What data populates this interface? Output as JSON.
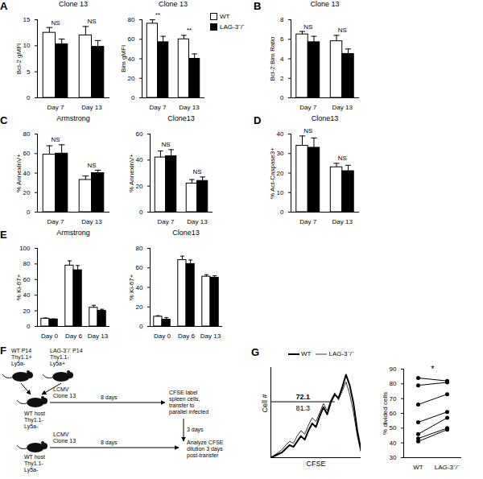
{
  "chart_data": [
    {
      "panel": "A",
      "type": "bar",
      "title": "Clone 13",
      "ylabel": "Bcl-2 gMFI",
      "categories": [
        "Day 7",
        "Day 13"
      ],
      "series": [
        {
          "name": "WT",
          "color": "#ffffff",
          "values": [
            12.5,
            12
          ],
          "errors": [
            1,
            1.7
          ]
        },
        {
          "name": "LAG-3⁻/⁻",
          "color": "#000000",
          "values": [
            10.3,
            9.8
          ],
          "errors": [
            1,
            1.2
          ]
        }
      ],
      "annotations": [
        "NS",
        "NS"
      ],
      "ylim": [
        0,
        15
      ],
      "yticks": [
        0,
        5,
        10,
        15
      ]
    },
    {
      "type": "bar",
      "title": "Clone 13",
      "ylabel": "Bim gMFI",
      "categories": [
        "Day 7",
        "Day 13"
      ],
      "series": [
        {
          "name": "WT",
          "color": "#ffffff",
          "values": [
            76,
            60
          ],
          "errors": [
            4,
            4
          ]
        },
        {
          "name": "LAG-3⁻/⁻",
          "color": "#000000",
          "values": [
            57,
            40
          ],
          "errors": [
            6,
            5
          ]
        }
      ],
      "annotations": [
        "**",
        "**"
      ],
      "ylim": [
        0,
        80
      ],
      "yticks": [
        0,
        20,
        40,
        60,
        80
      ],
      "legend": "top-right"
    },
    {
      "panel": "B",
      "type": "bar",
      "title": "Clone 13",
      "ylabel": "Bcl-2:Bim Ratio",
      "categories": [
        "Day 7",
        "Day 13"
      ],
      "series": [
        {
          "name": "WT",
          "color": "#ffffff",
          "values": [
            6.5,
            5.8
          ],
          "errors": [
            0.3,
            0.6
          ]
        },
        {
          "name": "LAG-3⁻/⁻",
          "color": "#000000",
          "values": [
            5.7,
            4.5
          ],
          "errors": [
            0.6,
            0.5
          ]
        }
      ],
      "annotations": [
        "NS",
        "NS"
      ],
      "ylim": [
        0,
        8
      ],
      "yticks": [
        0,
        2,
        4,
        6,
        8
      ]
    },
    {
      "panel": "C",
      "type": "bar",
      "title": "Armstrong",
      "ylabel": "% AnnexinV+",
      "categories": [
        "Day 7",
        "Day 13"
      ],
      "series": [
        {
          "name": "WT",
          "color": "#ffffff",
          "values": [
            59,
            33
          ],
          "errors": [
            9,
            4
          ]
        },
        {
          "name": "LAG-3⁻/⁻",
          "color": "#000000",
          "values": [
            60,
            40
          ],
          "errors": [
            9,
            3
          ]
        }
      ],
      "annotations": [
        "NS",
        "NS"
      ],
      "ylim": [
        0,
        80
      ],
      "yticks": [
        0,
        20,
        40,
        60,
        80
      ]
    },
    {
      "type": "bar",
      "title": "Clone13",
      "ylabel": "% AnnexinV+",
      "categories": [
        "Day 7",
        "Day 13"
      ],
      "series": [
        {
          "name": "WT",
          "color": "#ffffff",
          "values": [
            42,
            22
          ],
          "errors": [
            5,
            3
          ]
        },
        {
          "name": "LAG-3⁻/⁻",
          "color": "#000000",
          "values": [
            43,
            24
          ],
          "errors": [
            5,
            3
          ]
        }
      ],
      "annotations": [
        "NS",
        "NS"
      ],
      "ylim": [
        0,
        60
      ],
      "yticks": [
        0,
        20,
        40,
        60
      ]
    },
    {
      "panel": "D",
      "type": "bar",
      "title": "Clone13",
      "ylabel": "% Act-Caspase3+",
      "categories": [
        "Day 7",
        "Day 13"
      ],
      "series": [
        {
          "name": "WT",
          "color": "#ffffff",
          "values": [
            34,
            23
          ],
          "errors": [
            5,
            2
          ]
        },
        {
          "name": "LAG-3⁻/⁻",
          "color": "#000000",
          "values": [
            33,
            21
          ],
          "errors": [
            5,
            3
          ]
        }
      ],
      "annotations": [
        "NS",
        "NS"
      ],
      "ylim": [
        0,
        40
      ],
      "yticks": [
        0,
        10,
        20,
        30,
        40
      ]
    },
    {
      "panel": "E",
      "type": "bar",
      "title": "Armstrong",
      "ylabel": "% Ki-67+",
      "categories": [
        "Day 0",
        "Day 6",
        "Day 13"
      ],
      "series": [
        {
          "name": "WT",
          "color": "#ffffff",
          "values": [
            10,
            78,
            24
          ],
          "errors": [
            0.8,
            6,
            3
          ]
        },
        {
          "name": "LAG-3⁻/⁻",
          "color": "#000000",
          "values": [
            9,
            72,
            20
          ],
          "errors": [
            0.6,
            6,
            2
          ]
        }
      ],
      "ylim": [
        0,
        100
      ],
      "yticks": [
        0,
        20,
        40,
        60,
        80,
        100
      ]
    },
    {
      "type": "bar",
      "title": "Clone13",
      "ylabel": "% Ki-67+",
      "categories": [
        "Day 0",
        "Day 6",
        "Day 13"
      ],
      "series": [
        {
          "name": "WT",
          "color": "#ffffff",
          "values": [
            10,
            68,
            51
          ],
          "errors": [
            1,
            4,
            2
          ]
        },
        {
          "name": "LAG-3⁻/⁻",
          "color": "#000000",
          "values": [
            7,
            64,
            50
          ],
          "errors": [
            2,
            4,
            2
          ]
        }
      ],
      "ylim": [
        0,
        80
      ],
      "yticks": [
        0,
        20,
        40,
        60,
        80
      ]
    },
    {
      "panel": "G",
      "type": "line",
      "xlabel": "CFSE",
      "ylabel": "Cell #",
      "x": [
        0,
        1,
        2,
        3,
        4,
        5,
        6,
        7,
        8,
        9,
        10,
        11,
        12,
        13,
        14,
        15,
        16,
        17,
        18,
        19,
        20,
        21,
        22,
        23,
        24
      ],
      "series": [
        {
          "name": "WT",
          "color": "#000000",
          "line_style": "thick",
          "values": [
            0,
            2,
            4,
            6,
            10,
            14,
            12,
            18,
            24,
            20,
            30,
            38,
            34,
            46,
            56,
            48,
            62,
            70,
            66,
            78,
            92,
            80,
            60,
            30,
            8
          ]
        },
        {
          "name": "LAG-3⁻/⁻",
          "color": "#000000",
          "line_style": "thin",
          "values": [
            0,
            3,
            6,
            9,
            14,
            18,
            16,
            24,
            30,
            26,
            36,
            44,
            40,
            50,
            60,
            52,
            64,
            72,
            64,
            74,
            84,
            70,
            50,
            24,
            6
          ]
        }
      ],
      "gate": [
        0,
        17
      ],
      "annotations": [
        {
          "text": "72.1",
          "series": "WT"
        },
        {
          "text": "81.3",
          "series": "LAG-3⁻/⁻"
        }
      ],
      "xlim": [
        0,
        24
      ],
      "ylim": [
        0,
        100
      ],
      "tick_labels": false,
      "legend": "top"
    },
    {
      "type": "line",
      "marker": "circle",
      "ylabel": "% divided cells",
      "categories": [
        "WT",
        "LAG-3⁻/⁻"
      ],
      "pairs": [
        [
          84,
          82
        ],
        [
          79,
          81
        ],
        [
          66,
          73
        ],
        [
          54,
          61
        ],
        [
          46,
          57
        ],
        [
          43,
          50
        ],
        [
          41,
          49
        ]
      ],
      "annotations": [
        "*"
      ],
      "ylim": [
        30,
        90
      ],
      "yticks": [
        30,
        40,
        50,
        60,
        70,
        80,
        90
      ]
    }
  ],
  "diagram": {
    "panel": "F",
    "donors": [
      [
        "WT P14",
        "Thy1.1+",
        "Ly5a-"
      ],
      [
        "LAG-3⁻/⁻ P14",
        "Thy1.1-",
        "Ly5a+"
      ]
    ],
    "rows": [
      {
        "host": [
          "WT host",
          "Thy1.1-",
          "Ly5a-"
        ],
        "infection": [
          "LCMV",
          "Clone 13"
        ],
        "duration": "8 days",
        "step": [
          "CFSE label",
          "spleen cells,",
          "transfer to",
          "parallel infected"
        ]
      },
      {
        "host": [
          "WT host",
          "Thy1.1-",
          "Ly5a-"
        ],
        "infection": [
          "LCMV",
          "Clone 13"
        ],
        "duration": "8 days",
        "transfer": "3 days",
        "step": [
          "Analyze CFSE",
          "dilution 3 days",
          "post-transfer"
        ]
      }
    ]
  }
}
